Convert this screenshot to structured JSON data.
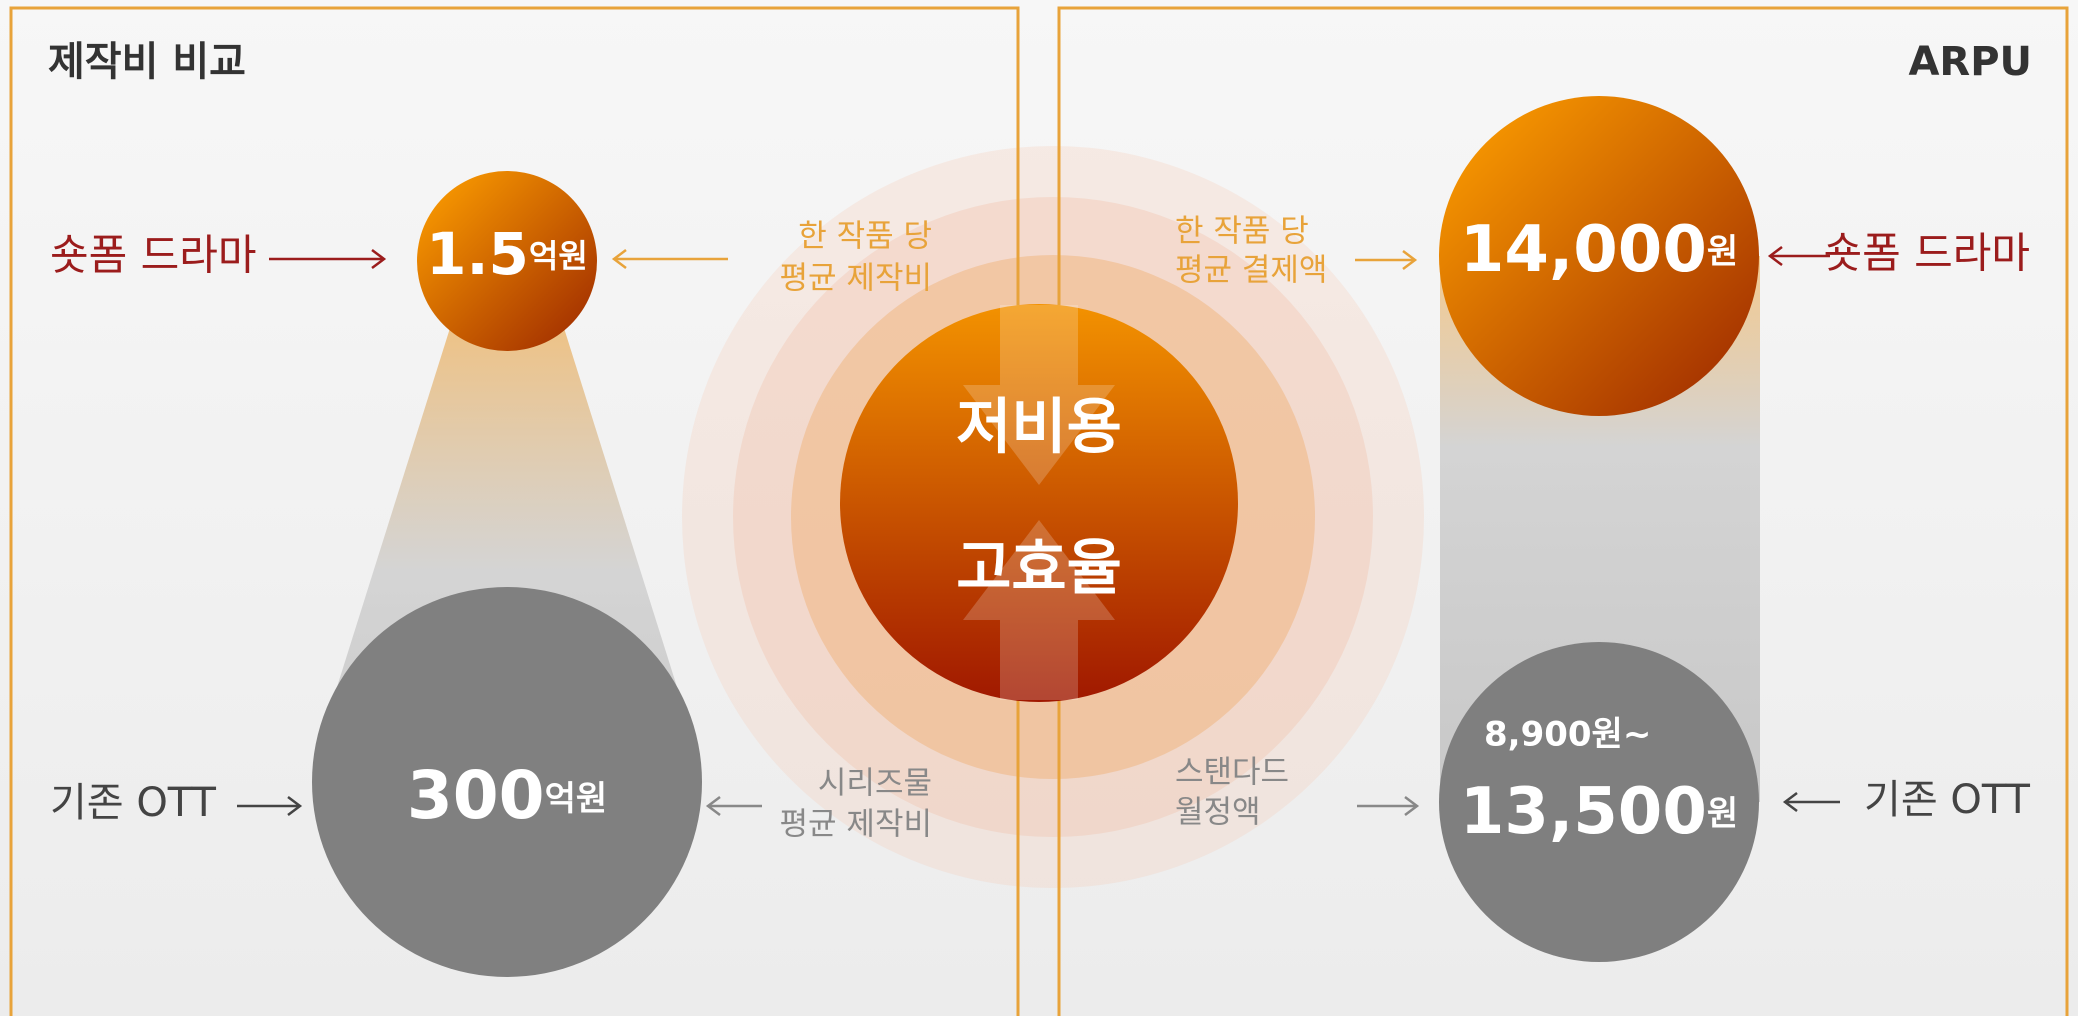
{
  "left": {
    "title": "제작비 비교",
    "short_form": {
      "label": "숏폼 드라마",
      "value": "1.5",
      "unit": "억원",
      "caption": [
        "한 작품 당",
        "평균 제작비"
      ]
    },
    "ott": {
      "label": "기존 OTT",
      "value": "300",
      "unit": "억원",
      "caption": [
        "시리즈물",
        "평균 제작비"
      ]
    }
  },
  "center": {
    "top": "저비용",
    "bottom": "고효율"
  },
  "right": {
    "title": "ARPU",
    "short_form": {
      "label": "숏폼 드라마",
      "value": "14,000",
      "unit": "원",
      "caption": [
        "한 작품 당",
        "평균 결제액"
      ]
    },
    "ott": {
      "label": "기존 OTT",
      "low": "8,900원~",
      "value": "13,500",
      "unit": "원",
      "caption": [
        "스탠다드",
        "월정액"
      ]
    }
  }
}
